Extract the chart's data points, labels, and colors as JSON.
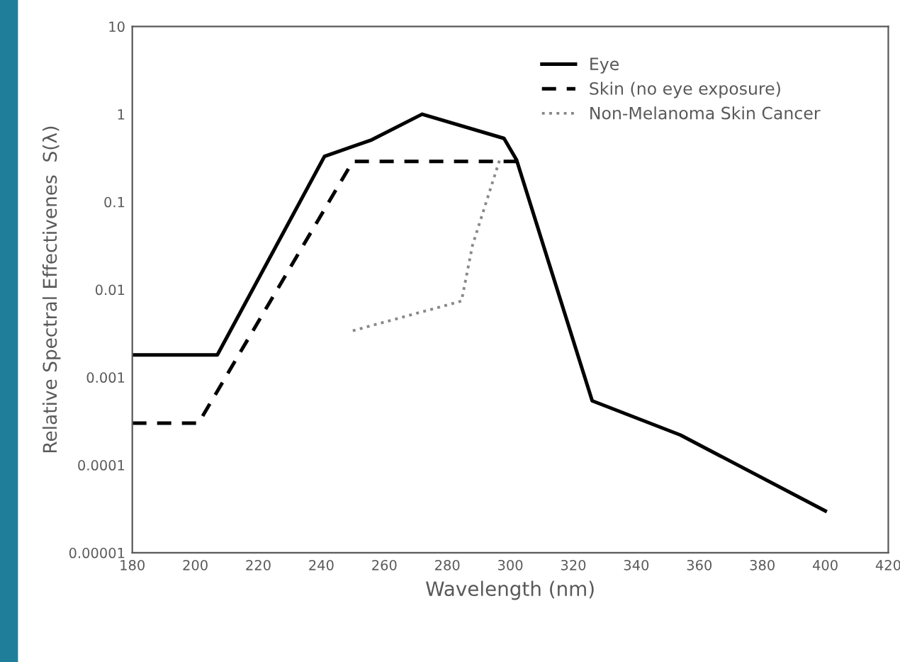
{
  "chart_data": {
    "type": "line",
    "xlabel": "Wavelength (nm)",
    "ylabel": "Relative Spectral Effectivenes  S(λ)",
    "log": "y",
    "xlim": [
      180,
      420
    ],
    "xticks": [
      180,
      200,
      220,
      240,
      260,
      280,
      300,
      320,
      340,
      360,
      380,
      400,
      420
    ],
    "ylim": [
      1e-05,
      10
    ],
    "yticks": [
      {
        "value": 1e-05,
        "label": "0.00001"
      },
      {
        "value": 0.0001,
        "label": "0.0001"
      },
      {
        "value": 0.001,
        "label": "0.001"
      },
      {
        "value": 0.01,
        "label": "0.01"
      },
      {
        "value": 0.1,
        "label": "0.1"
      },
      {
        "value": 1,
        "label": "1"
      },
      {
        "value": 10,
        "label": "10"
      }
    ],
    "grid": false,
    "legend": "top right",
    "marker": "none",
    "series": [
      {
        "name": "Eye",
        "color": "#000000",
        "line_style": "solid",
        "x": [
          180,
          207,
          241,
          256,
          272,
          298,
          302,
          319,
          326,
          354,
          400
        ],
        "values": [
          0.0018,
          0.0018,
          0.33,
          0.51,
          1,
          0.53,
          0.3,
          0.0034,
          0.00054,
          0.00022,
          3e-05
        ]
      },
      {
        "name": "Skin (no eye exposure)",
        "color": "#000000",
        "line_style": "dashed",
        "x": [
          180,
          201,
          250,
          303
        ],
        "values": [
          0.0003,
          0.0003,
          0.29,
          0.29
        ]
      },
      {
        "name": "Non-Melanoma Skin Cancer",
        "color": "#888888",
        "line_style": "dotted",
        "x": [
          250,
          284.5,
          288,
          296.6
        ],
        "values": [
          0.0034,
          0.0074,
          0.032,
          0.3
        ]
      }
    ]
  }
}
